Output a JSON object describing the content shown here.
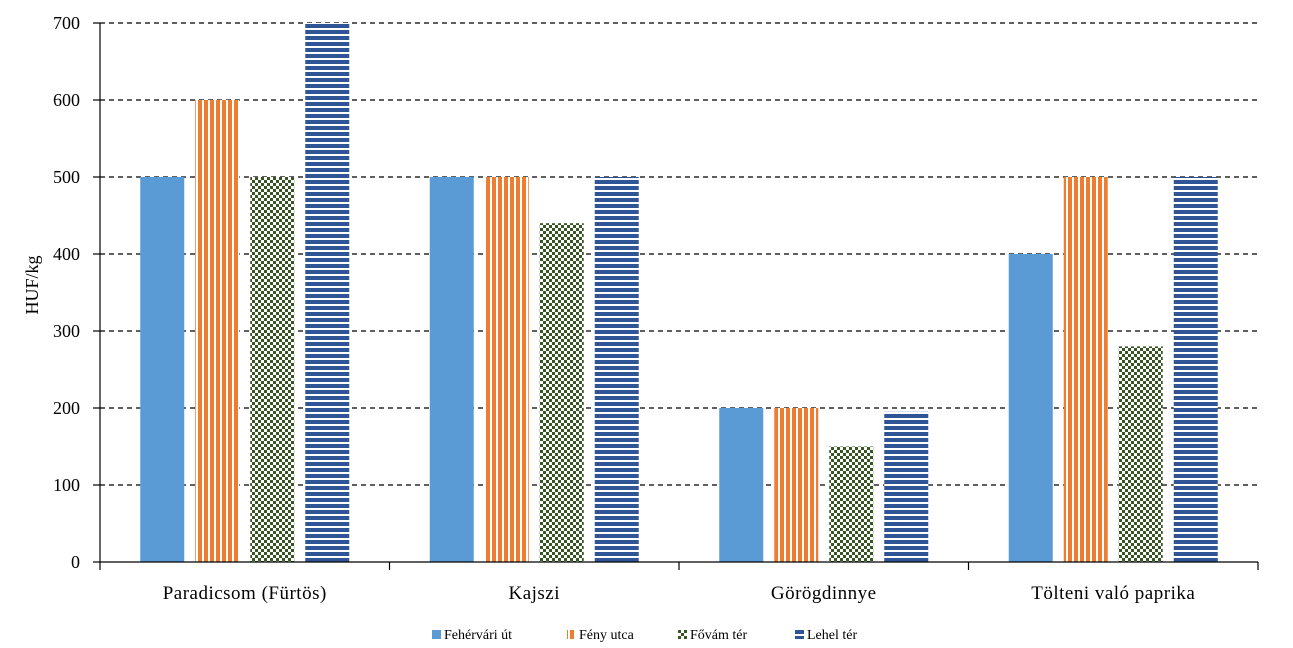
{
  "chart_data": {
    "type": "bar",
    "ylabel": "HUF/kg",
    "xlabel": "",
    "ylim": [
      0,
      700
    ],
    "yticks": [
      0,
      100,
      200,
      300,
      400,
      500,
      600,
      700
    ],
    "grid": "horizontal dashed",
    "legend_position": "bottom",
    "categories": [
      "Paradicsom (Fürtös)",
      "Kajszi",
      "Görögdinnye",
      "Tölteni való paprika"
    ],
    "series": [
      {
        "name": "Fehérvári út",
        "values": [
          500,
          500,
          200,
          400
        ],
        "color": "#5b9bd5",
        "pattern": "solid"
      },
      {
        "name": "Fény utca",
        "values": [
          600,
          500,
          200,
          500
        ],
        "color": "#ed7d31",
        "pattern": "vertical-stripes"
      },
      {
        "name": "Fővám tér",
        "values": [
          500,
          440,
          150,
          280
        ],
        "color": "#375623",
        "pattern": "checker"
      },
      {
        "name": "Lehel tér",
        "values": [
          700,
          500,
          195,
          500
        ],
        "color": "#2f5597",
        "pattern": "horizontal-stripes"
      }
    ]
  }
}
